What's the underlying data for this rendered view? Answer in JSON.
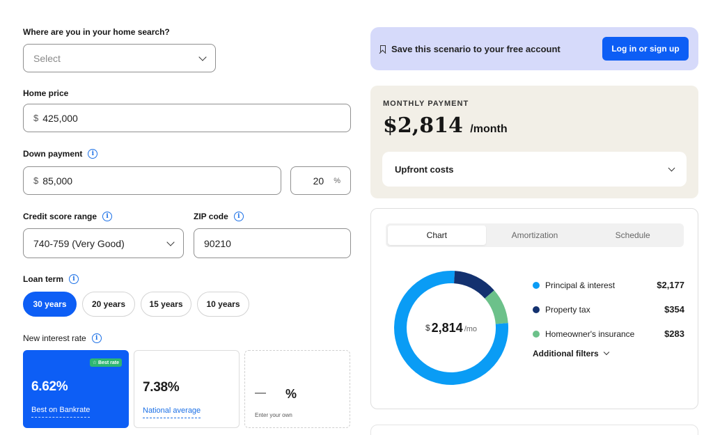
{
  "search_stage": {
    "label": "Where are you in your home search?",
    "placeholder": "Select"
  },
  "home_price": {
    "label": "Home price",
    "prefix": "$",
    "value": "425,000"
  },
  "down_payment": {
    "label": "Down payment",
    "prefix": "$",
    "value": "85,000",
    "percent_value": "20",
    "percent_suffix": "%"
  },
  "credit_score": {
    "label": "Credit score range",
    "value": "740-759 (Very Good)"
  },
  "zip": {
    "label": "ZIP code",
    "value": "90210"
  },
  "loan_term": {
    "label": "Loan term",
    "options": [
      "30 years",
      "20 years",
      "15 years",
      "10 years"
    ],
    "selected": "30 years"
  },
  "interest": {
    "label": "New interest rate",
    "best": {
      "badge": "Best rate",
      "value": "6.62%",
      "sub": "Best on Bankrate"
    },
    "national": {
      "value": "7.38%",
      "sub": "National average"
    },
    "own": {
      "dash": "—",
      "suffix": "%",
      "sub": "Enter your own"
    }
  },
  "save_banner": {
    "text": "Save this scenario to your free account",
    "button": "Log in or sign up"
  },
  "monthly": {
    "label": "MONTHLY PAYMENT",
    "amount": "$2,814",
    "unit": "/month",
    "upfront": "Upfront costs"
  },
  "tabs": [
    "Chart",
    "Amortization",
    "Schedule"
  ],
  "donut_center": {
    "dollar": "$",
    "amount": "2,814",
    "unit": "/mo"
  },
  "legend": [
    {
      "label": "Principal & interest",
      "value": "$2,177",
      "color": "#0a9cf5"
    },
    {
      "label": "Property tax",
      "value": "$354",
      "color": "#13316f"
    },
    {
      "label": "Homeowner's insurance",
      "value": "$283",
      "color": "#6cc18a"
    }
  ],
  "additional_filters": "Additional filters",
  "chart_data": {
    "type": "pie",
    "categories": [
      "Principal & interest",
      "Property tax",
      "Homeowner's insurance"
    ],
    "values": [
      2177,
      354,
      283
    ],
    "colors": [
      "#0a9cf5",
      "#13316f",
      "#6cc18a"
    ],
    "title": ""
  }
}
